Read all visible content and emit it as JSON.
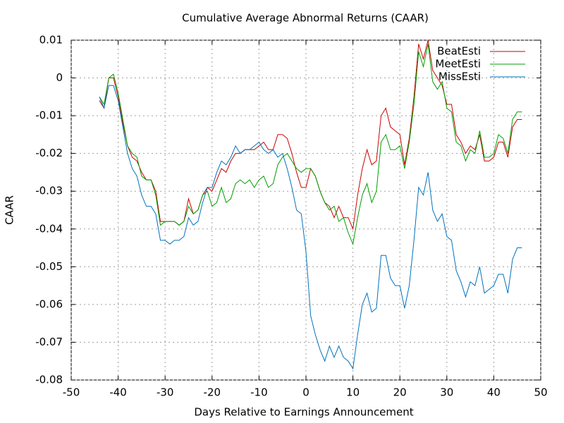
{
  "chart_data": {
    "type": "line",
    "title": "Cumulative Average Abnormal Returns (CAAR)",
    "x_label": "Days Relative to Earnings Announcement",
    "y_label": "CAAR",
    "x": [
      -44,
      -43,
      -42,
      -41,
      -40,
      -39,
      -38,
      -37,
      -36,
      -35,
      -34,
      -33,
      -32,
      -31,
      -30,
      -29,
      -28,
      -27,
      -26,
      -25,
      -24,
      -23,
      -22,
      -21,
      -20,
      -19,
      -18,
      -17,
      -16,
      -15,
      -14,
      -13,
      -12,
      -11,
      -10,
      -9,
      -8,
      -7,
      -6,
      -5,
      -4,
      -3,
      -2,
      -1,
      0,
      1,
      2,
      3,
      4,
      5,
      6,
      7,
      8,
      9,
      10,
      11,
      12,
      13,
      14,
      15,
      16,
      17,
      18,
      19,
      20,
      21,
      22,
      23,
      24,
      25,
      26,
      27,
      28,
      29,
      30,
      31,
      32,
      33,
      34,
      35,
      36,
      37,
      38,
      39,
      40,
      41,
      42,
      43,
      44,
      45,
      46
    ],
    "series": [
      {
        "name": "BeatEsti",
        "color": "#cc0000",
        "values": [
          -0.006,
          -0.008,
          0.0,
          0.0,
          -0.005,
          -0.012,
          -0.018,
          -0.021,
          -0.022,
          -0.025,
          -0.027,
          -0.027,
          -0.03,
          -0.038,
          -0.038,
          -0.038,
          -0.038,
          -0.039,
          -0.038,
          -0.032,
          -0.036,
          -0.035,
          -0.031,
          -0.029,
          -0.03,
          -0.027,
          -0.024,
          -0.025,
          -0.022,
          -0.02,
          -0.02,
          -0.019,
          -0.019,
          -0.019,
          -0.018,
          -0.017,
          -0.019,
          -0.019,
          -0.015,
          -0.015,
          -0.016,
          -0.02,
          -0.025,
          -0.029,
          -0.029,
          -0.024,
          -0.026,
          -0.03,
          -0.033,
          -0.034,
          -0.037,
          -0.034,
          -0.037,
          -0.037,
          -0.04,
          -0.031,
          -0.024,
          -0.019,
          -0.023,
          -0.022,
          -0.01,
          -0.008,
          -0.013,
          -0.014,
          -0.015,
          -0.023,
          -0.016,
          -0.005,
          0.009,
          0.005,
          0.01,
          0.002,
          0.0,
          -0.002,
          -0.007,
          -0.007,
          -0.015,
          -0.017,
          -0.02,
          -0.018,
          -0.019,
          -0.015,
          -0.022,
          -0.022,
          -0.021,
          -0.017,
          -0.017,
          -0.021,
          -0.013,
          -0.011,
          -0.011
        ]
      },
      {
        "name": "MeetEsti",
        "color": "#00a000",
        "values": [
          -0.005,
          -0.007,
          0.0,
          0.001,
          -0.004,
          -0.011,
          -0.018,
          -0.02,
          -0.021,
          -0.026,
          -0.027,
          -0.027,
          -0.031,
          -0.039,
          -0.038,
          -0.038,
          -0.038,
          -0.039,
          -0.038,
          -0.034,
          -0.036,
          -0.035,
          -0.031,
          -0.03,
          -0.034,
          -0.033,
          -0.029,
          -0.033,
          -0.032,
          -0.028,
          -0.027,
          -0.028,
          -0.027,
          -0.029,
          -0.027,
          -0.026,
          -0.029,
          -0.028,
          -0.023,
          -0.021,
          -0.02,
          -0.022,
          -0.024,
          -0.025,
          -0.024,
          -0.024,
          -0.026,
          -0.03,
          -0.033,
          -0.035,
          -0.034,
          -0.038,
          -0.037,
          -0.041,
          -0.044,
          -0.037,
          -0.031,
          -0.028,
          -0.033,
          -0.03,
          -0.017,
          -0.015,
          -0.019,
          -0.019,
          -0.018,
          -0.024,
          -0.017,
          -0.007,
          0.007,
          0.003,
          0.009,
          -0.001,
          -0.003,
          -0.001,
          -0.008,
          -0.009,
          -0.017,
          -0.018,
          -0.022,
          -0.019,
          -0.02,
          -0.014,
          -0.021,
          -0.021,
          -0.02,
          -0.015,
          -0.016,
          -0.02,
          -0.011,
          -0.009,
          -0.009
        ]
      },
      {
        "name": "MissEsti",
        "color": "#0072bd",
        "values": [
          -0.005,
          -0.008,
          -0.002,
          -0.002,
          -0.006,
          -0.013,
          -0.02,
          -0.024,
          -0.026,
          -0.031,
          -0.034,
          -0.034,
          -0.036,
          -0.043,
          -0.043,
          -0.044,
          -0.043,
          -0.043,
          -0.042,
          -0.037,
          -0.039,
          -0.038,
          -0.033,
          -0.029,
          -0.029,
          -0.025,
          -0.022,
          -0.023,
          -0.021,
          -0.018,
          -0.02,
          -0.019,
          -0.019,
          -0.018,
          -0.017,
          -0.019,
          -0.02,
          -0.019,
          -0.021,
          -0.02,
          -0.024,
          -0.029,
          -0.035,
          -0.036,
          -0.046,
          -0.063,
          -0.068,
          -0.072,
          -0.075,
          -0.071,
          -0.074,
          -0.071,
          -0.074,
          -0.075,
          -0.077,
          -0.068,
          -0.06,
          -0.057,
          -0.062,
          -0.061,
          -0.047,
          -0.047,
          -0.053,
          -0.055,
          -0.055,
          -0.061,
          -0.055,
          -0.043,
          -0.029,
          -0.031,
          -0.025,
          -0.035,
          -0.038,
          -0.036,
          -0.042,
          -0.043,
          -0.051,
          -0.054,
          -0.058,
          -0.054,
          -0.055,
          -0.05,
          -0.057,
          -0.056,
          -0.055,
          -0.052,
          -0.052,
          -0.057,
          -0.048,
          -0.045,
          -0.045
        ]
      }
    ],
    "xlim": [
      -50,
      50
    ],
    "xticks": [
      -50,
      -40,
      -30,
      -20,
      -10,
      0,
      10,
      20,
      30,
      40,
      50
    ],
    "ylim": [
      -0.08,
      0.01
    ],
    "yticks": [
      -0.08,
      -0.07,
      -0.06,
      -0.05,
      -0.04,
      -0.03,
      -0.02,
      -0.01,
      0,
      0.01
    ],
    "grid": true,
    "legend": "top-right"
  }
}
